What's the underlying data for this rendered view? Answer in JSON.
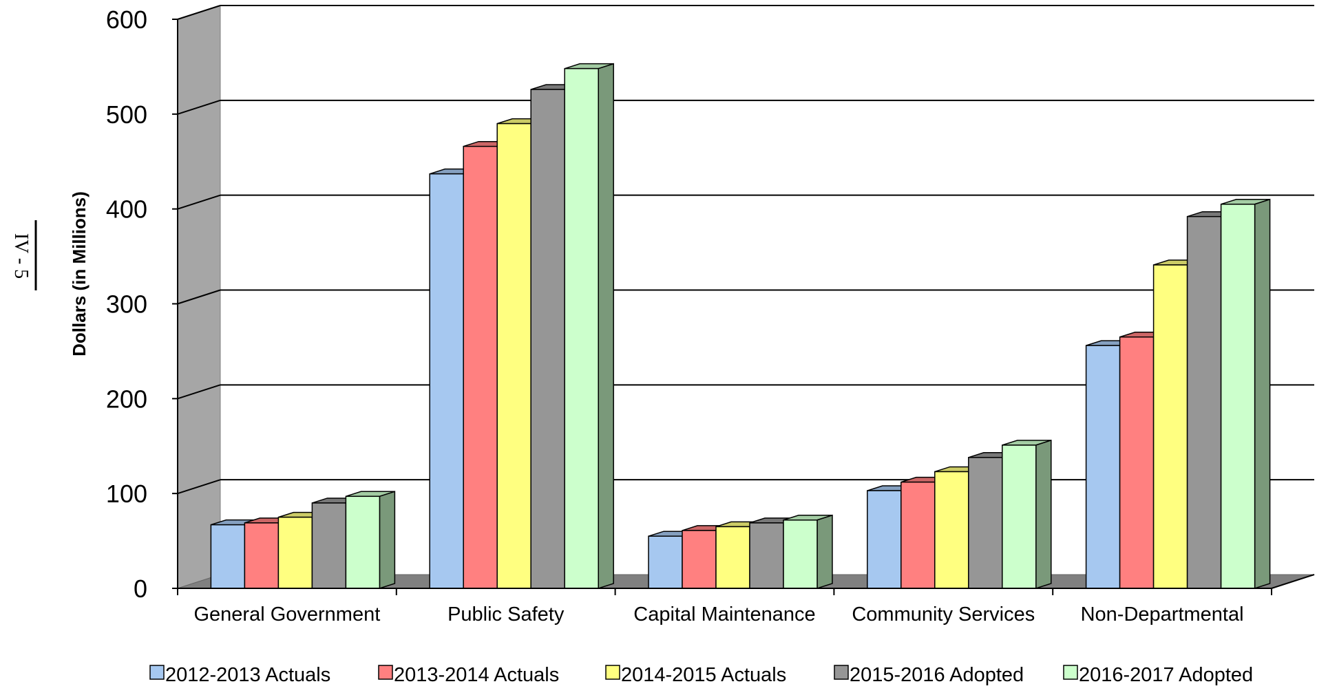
{
  "page_number": "IV - 5",
  "chart_data": {
    "type": "bar",
    "title": "",
    "xlabel": "",
    "ylabel": "Dollars (in Millions)",
    "ylim": [
      0,
      600
    ],
    "yticks": [
      "0",
      "100",
      "200",
      "300",
      "400",
      "500",
      "600"
    ],
    "grid": true,
    "three_d": true,
    "legend_position": "bottom",
    "categories": [
      "General Government",
      "Public Safety",
      "Capital Maintenance",
      "Community Services",
      "Non-Departmental"
    ],
    "series": [
      {
        "name": "2012-2013 Actuals",
        "color": "#a6c8f0",
        "values": [
          67,
          437,
          55,
          103,
          256
        ]
      },
      {
        "name": "2013-2014 Actuals",
        "color": "#ff8080",
        "values": [
          69,
          466,
          61,
          112,
          265
        ]
      },
      {
        "name": "2014-2015 Actuals",
        "color": "#ffff80",
        "values": [
          75,
          490,
          65,
          123,
          341
        ]
      },
      {
        "name": "2015-2016 Adopted",
        "color": "#969696",
        "values": [
          90,
          526,
          69,
          138,
          392
        ]
      },
      {
        "name": "2016-2017 Adopted",
        "color": "#ccffcc",
        "values": [
          97,
          548,
          72,
          151,
          405
        ]
      }
    ]
  }
}
